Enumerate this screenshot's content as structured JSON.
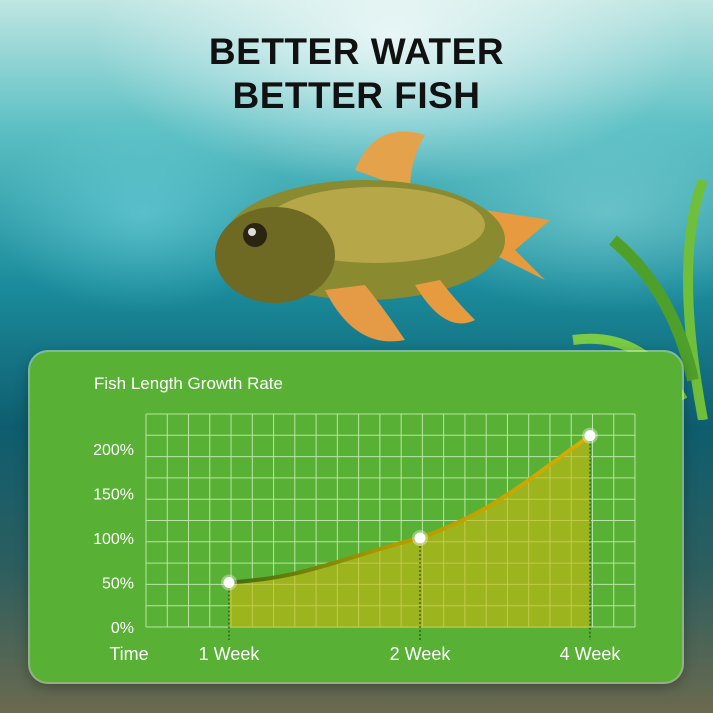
{
  "headline": {
    "line1": "BETTER WATER",
    "line2": "BETTER FISH"
  },
  "chart_data": {
    "type": "area",
    "title": "Fish Length Growth Rate",
    "xlabel": "Time",
    "ylabel": "",
    "categories": [
      "1 Week",
      "2 Week",
      "4 Week"
    ],
    "values": [
      50,
      100,
      215
    ],
    "ylim": [
      0,
      200
    ],
    "yticks": [
      "0%",
      "50%",
      "100%",
      "150%",
      "200%"
    ],
    "grid": true,
    "colors": {
      "panel": "#58b035",
      "line": "#d8ae00",
      "fill": "#c9b80f",
      "grid": "#b9e6a4",
      "marker": "#ffffff"
    }
  }
}
